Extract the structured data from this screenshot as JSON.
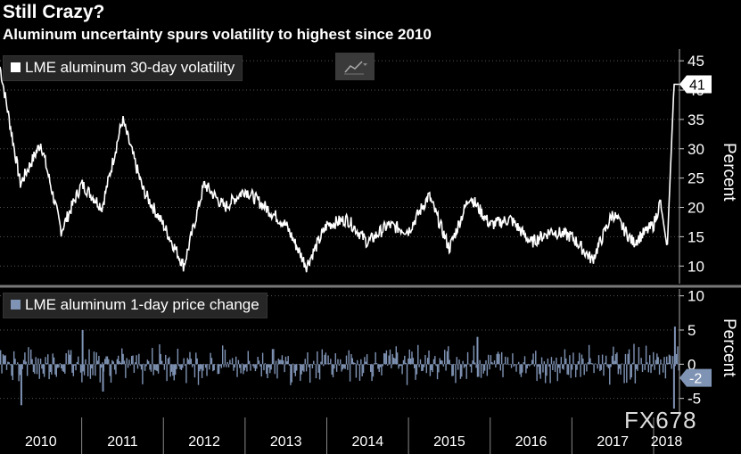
{
  "title": "Still Crazy?",
  "subtitle": "Aluminum uncertainty spurs volatility to highest since 2010",
  "watermark": "FX678",
  "colors": {
    "top_series": "#ffffff",
    "bottom_series": "#7f93b4",
    "background": "#000000",
    "grid": "#555555"
  },
  "chart_data": [
    {
      "type": "line",
      "series": [
        {
          "name": "LME aluminum 30-day volatility"
        }
      ],
      "ylabel": "Percent",
      "ylim": [
        7,
        47
      ],
      "yticks": [
        "10",
        "15",
        "20",
        "25",
        "30",
        "35",
        "40",
        "45"
      ],
      "last_value_label": "41",
      "x": [
        "2010-01",
        "2010-04",
        "2010-07",
        "2010-10",
        "2011-01",
        "2011-04",
        "2011-07",
        "2011-10",
        "2012-01",
        "2012-04",
        "2012-07",
        "2012-10",
        "2013-01",
        "2013-04",
        "2013-07",
        "2013-10",
        "2014-01",
        "2014-04",
        "2014-07",
        "2014-10",
        "2015-01",
        "2015-04",
        "2015-07",
        "2015-10",
        "2016-01",
        "2016-04",
        "2016-07",
        "2016-10",
        "2017-01",
        "2017-04",
        "2017-07",
        "2017-10",
        "2018-01",
        "2018-02",
        "2018-03",
        "2018-04"
      ],
      "values": [
        44,
        24,
        31,
        16,
        24,
        20,
        35,
        23,
        17,
        10,
        24,
        20,
        23,
        20,
        17,
        10,
        17,
        18,
        14,
        17,
        16,
        22,
        13,
        22,
        17,
        18,
        14,
        16,
        15,
        11,
        19,
        14,
        17,
        21,
        13,
        41
      ]
    },
    {
      "type": "bar",
      "series": [
        {
          "name": "LME aluminum 1-day price change"
        }
      ],
      "ylabel": "Percent",
      "ylim": [
        -7,
        11
      ],
      "yticks": [
        "-5",
        "0",
        "5",
        "10"
      ],
      "last_value_label": "-2",
      "x_range": [
        "2010-01",
        "2018-04"
      ],
      "daily_amplitude_pct": 2,
      "extremes": [
        {
          "date": "2010-04",
          "value": -6
        },
        {
          "date": "2011-01",
          "value": 5
        },
        {
          "date": "2011-04",
          "value": -4
        },
        {
          "date": "2015-11",
          "value": 4
        },
        {
          "date": "2018-04",
          "value": 5.5
        },
        {
          "date": "2018-04",
          "value": -6.5
        }
      ]
    }
  ],
  "x_axis_labels": [
    "2010",
    "2011",
    "2012",
    "2013",
    "2014",
    "2015",
    "2016",
    "2017",
    "2018"
  ],
  "icons": {
    "chart_toggle": "line-chart-icon"
  }
}
